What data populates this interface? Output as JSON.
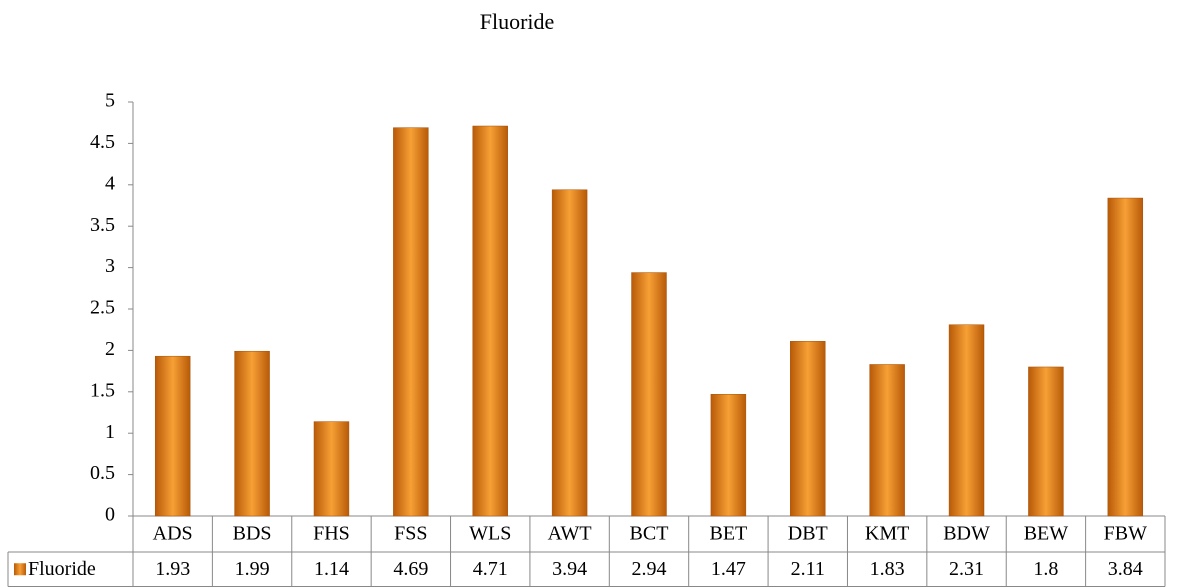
{
  "chart_data": {
    "type": "bar",
    "title": "Fluoride",
    "categories": [
      "ADS",
      "BDS",
      "FHS",
      "FSS",
      "WLS",
      "AWT",
      "BCT",
      "BET",
      "DBT",
      "KMT",
      "BDW",
      "BEW",
      "FBW"
    ],
    "series": [
      {
        "name": "Fluoride",
        "color": "#f7a035",
        "values": [
          1.93,
          1.99,
          1.14,
          4.69,
          4.71,
          3.94,
          2.94,
          1.47,
          2.11,
          1.83,
          2.31,
          1.8,
          3.84
        ]
      }
    ],
    "ylim": [
      0,
      5
    ],
    "yticks": [
      0,
      0.5,
      1,
      1.5,
      2,
      2.5,
      3,
      3.5,
      4,
      4.5,
      5
    ],
    "grid": false
  }
}
